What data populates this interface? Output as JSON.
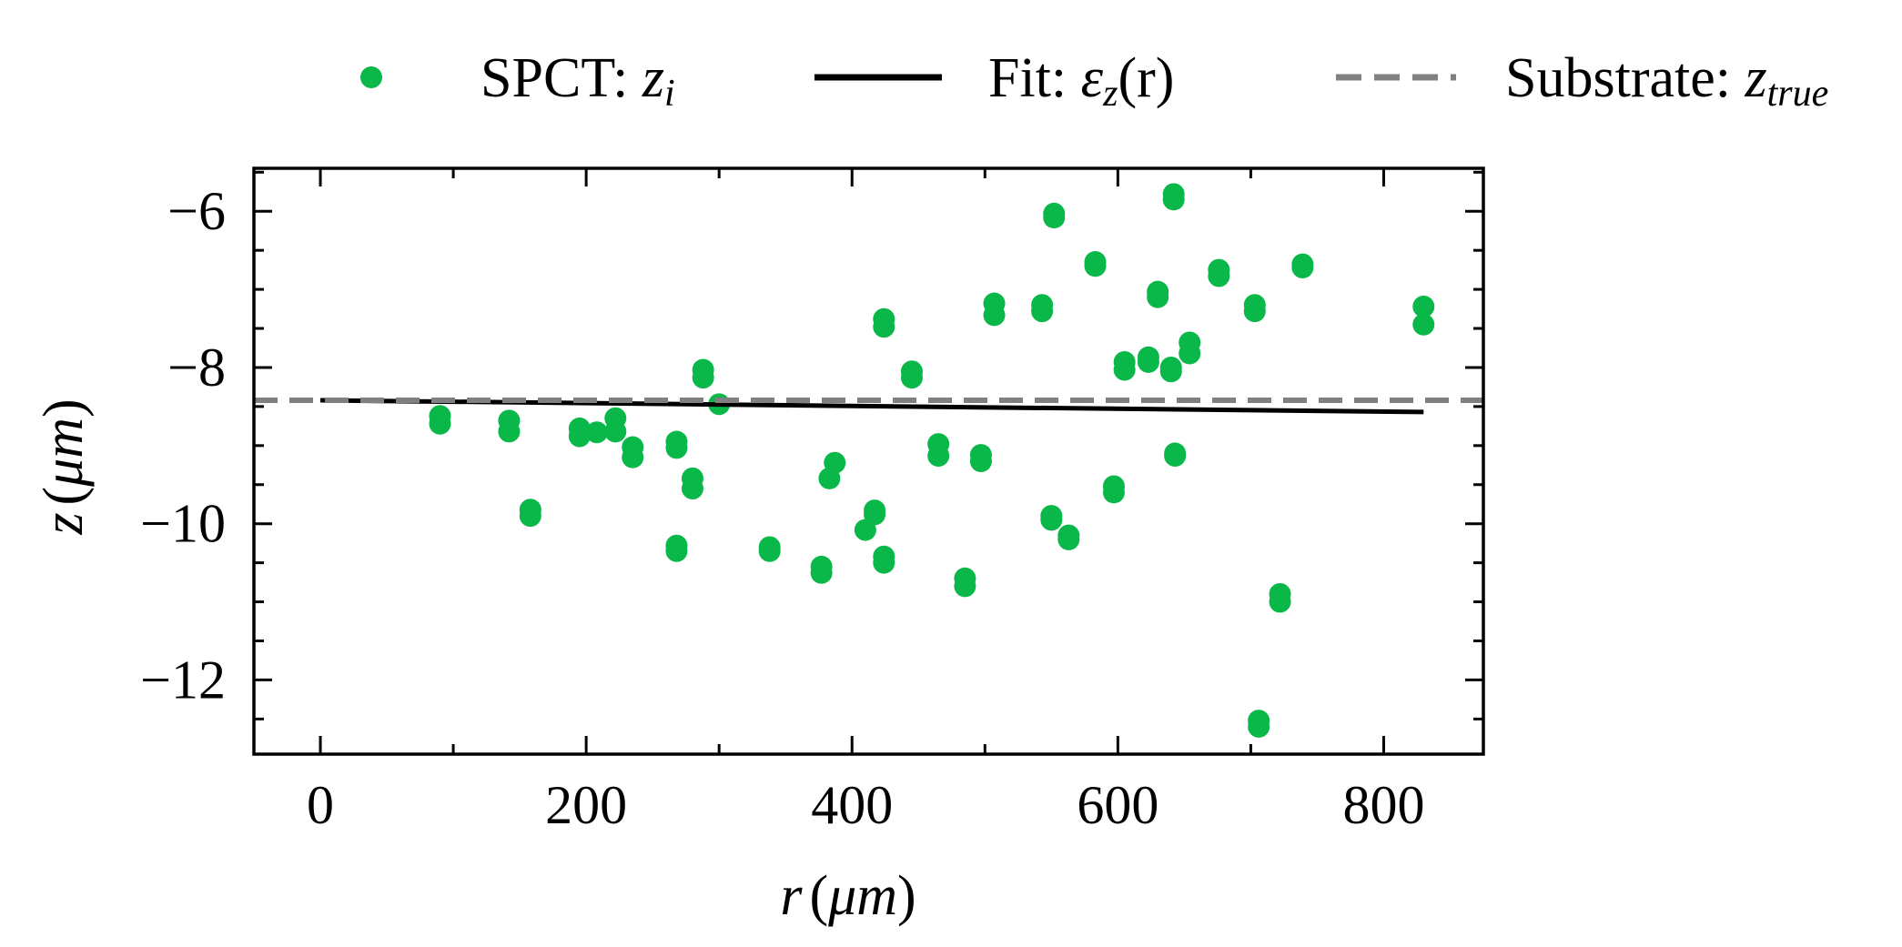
{
  "chart_data": {
    "type": "scatter",
    "xlabel": {
      "var": "r",
      "open": "(",
      "unit": "μm",
      "close": ")"
    },
    "ylabel": {
      "var": "z",
      "open": "(",
      "unit": "μm",
      "close": ")"
    },
    "xlim": [
      -50,
      875
    ],
    "ylim": [
      -12.95,
      -5.45
    ],
    "xticks": [
      0,
      200,
      400,
      600,
      800
    ],
    "xtick_labels": [
      "0",
      "200",
      "400",
      "600",
      "800"
    ],
    "yticks": [
      -6,
      -8,
      -10,
      -12
    ],
    "ytick_labels": [
      "−6",
      "−8",
      "−10",
      "−12"
    ],
    "grid": false,
    "legend_position": "top",
    "colors": {
      "spct": "#0ab84a",
      "fit": "#000000",
      "substrate": "#808080"
    },
    "legend": [
      {
        "key": "spct",
        "text": "SPCT: ",
        "math": "z",
        "sub": "i"
      },
      {
        "key": "fit",
        "text": "Fit: ",
        "math": "ε",
        "sub": "z",
        "suffix": "(r)"
      },
      {
        "key": "substrate",
        "text": "Substrate: ",
        "math": "z",
        "sub": "true"
      }
    ],
    "series": [
      {
        "name": "SPCT: z_i",
        "kind": "scatter",
        "points": [
          [
            90,
            -8.62
          ],
          [
            90,
            -8.72
          ],
          [
            142,
            -8.68
          ],
          [
            142,
            -8.82
          ],
          [
            158,
            -9.82
          ],
          [
            158,
            -9.9
          ],
          [
            195,
            -8.78
          ],
          [
            195,
            -8.88
          ],
          [
            208,
            -8.83
          ],
          [
            222,
            -8.65
          ],
          [
            222,
            -8.82
          ],
          [
            235,
            -9.02
          ],
          [
            235,
            -9.15
          ],
          [
            268,
            -8.95
          ],
          [
            268,
            -9.03
          ],
          [
            268,
            -10.28
          ],
          [
            268,
            -10.35
          ],
          [
            280,
            -9.42
          ],
          [
            280,
            -9.55
          ],
          [
            288,
            -8.03
          ],
          [
            288,
            -8.13
          ],
          [
            300,
            -8.47
          ],
          [
            338,
            -10.3
          ],
          [
            338,
            -10.35
          ],
          [
            377,
            -10.55
          ],
          [
            377,
            -10.63
          ],
          [
            383,
            -9.42
          ],
          [
            387,
            -9.22
          ],
          [
            410,
            -10.08
          ],
          [
            417,
            -9.83
          ],
          [
            417,
            -9.88
          ],
          [
            424,
            -7.38
          ],
          [
            424,
            -7.48
          ],
          [
            424,
            -10.42
          ],
          [
            424,
            -10.5
          ],
          [
            445,
            -8.05
          ],
          [
            445,
            -8.13
          ],
          [
            465,
            -8.98
          ],
          [
            465,
            -9.13
          ],
          [
            485,
            -10.7
          ],
          [
            485,
            -10.8
          ],
          [
            497,
            -9.12
          ],
          [
            497,
            -9.2
          ],
          [
            507,
            -7.18
          ],
          [
            507,
            -7.33
          ],
          [
            543,
            -7.2
          ],
          [
            543,
            -7.28
          ],
          [
            550,
            -9.9
          ],
          [
            550,
            -9.95
          ],
          [
            552,
            -6.03
          ],
          [
            552,
            -6.08
          ],
          [
            563,
            -10.15
          ],
          [
            563,
            -10.2
          ],
          [
            583,
            -6.65
          ],
          [
            583,
            -6.7
          ],
          [
            597,
            -9.52
          ],
          [
            597,
            -9.6
          ],
          [
            605,
            -7.93
          ],
          [
            605,
            -8.03
          ],
          [
            623,
            -7.87
          ],
          [
            623,
            -7.93
          ],
          [
            630,
            -7.03
          ],
          [
            630,
            -7.1
          ],
          [
            640,
            -8.0
          ],
          [
            640,
            -8.05
          ],
          [
            642,
            -5.78
          ],
          [
            642,
            -5.85
          ],
          [
            643,
            -9.1
          ],
          [
            643,
            -9.13
          ],
          [
            654,
            -7.68
          ],
          [
            654,
            -7.82
          ],
          [
            676,
            -6.75
          ],
          [
            676,
            -6.83
          ],
          [
            703,
            -7.2
          ],
          [
            703,
            -7.28
          ],
          [
            706,
            -12.52
          ],
          [
            706,
            -12.6
          ],
          [
            722,
            -10.9
          ],
          [
            722,
            -11.0
          ],
          [
            739,
            -6.68
          ],
          [
            739,
            -6.72
          ],
          [
            830,
            -7.22
          ],
          [
            830,
            -7.45
          ]
        ]
      },
      {
        "name": "Fit: ε_z(r)",
        "kind": "line",
        "x": [
          0,
          830
        ],
        "y": [
          -8.42,
          -8.57
        ]
      },
      {
        "name": "Substrate: z_true",
        "kind": "hline",
        "y": -8.42
      }
    ]
  }
}
